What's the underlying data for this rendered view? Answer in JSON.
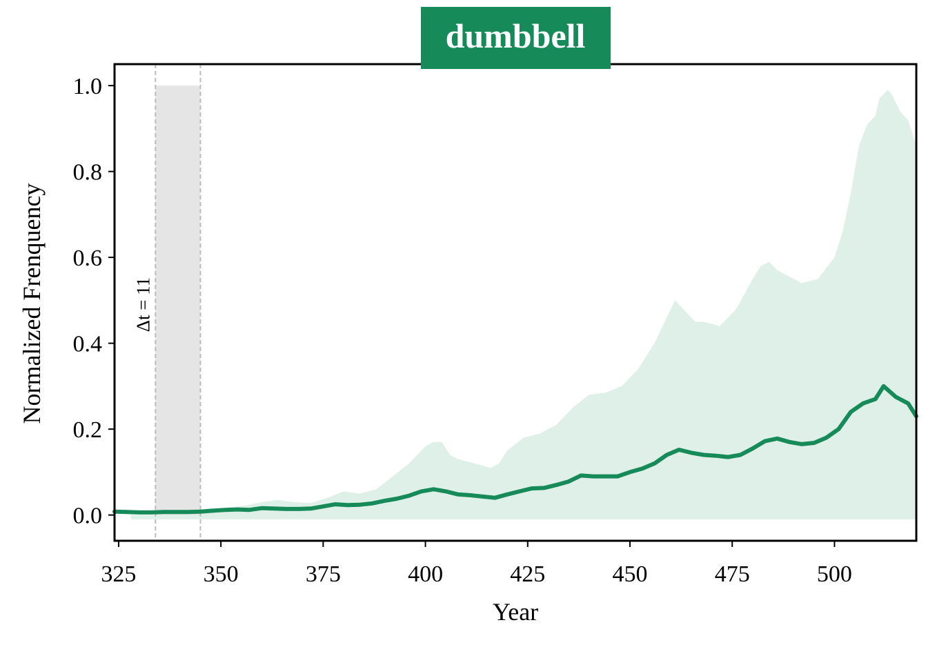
{
  "chart_data": {
    "type": "area",
    "title": "dumbbell",
    "xlabel": "Year",
    "ylabel": "Normalized Frenquency",
    "xlim": [
      324,
      520
    ],
    "ylim": [
      -0.06,
      1.05
    ],
    "xticks": [
      "325",
      "350",
      "375",
      "400",
      "425",
      "450",
      "475",
      "500"
    ],
    "yticks": [
      "0.0",
      "0.2",
      "0.4",
      "0.6",
      "0.8",
      "1.0"
    ],
    "grid": false,
    "colors": {
      "line": "#178a5a",
      "band": "#dff0e8",
      "window": "#e5e5e5",
      "title_bg": "#178a5a",
      "vline": "#bbbbbb"
    },
    "window": {
      "x_start": 334,
      "x_end": 345,
      "y_top": 1.0,
      "label": "Δt = 11"
    },
    "band_floor": -0.01,
    "series": [
      {
        "type": "line",
        "x": [
          324,
          327,
          330,
          333,
          336,
          339,
          342,
          345,
          348,
          351,
          354,
          357,
          360,
          363,
          366,
          369,
          372,
          375,
          378,
          381,
          384,
          387,
          390,
          393,
          396,
          399,
          402,
          405,
          408,
          411,
          414,
          417,
          420,
          423,
          426,
          429,
          432,
          435,
          438,
          441,
          444,
          447,
          450,
          453,
          456,
          459,
          462,
          465,
          468,
          471,
          474,
          477,
          480,
          483,
          486,
          489,
          492,
          495,
          498,
          501,
          504,
          507,
          510,
          512,
          515,
          518,
          520
        ],
        "y": [
          0.008,
          0.007,
          0.006,
          0.006,
          0.007,
          0.007,
          0.007,
          0.008,
          0.01,
          0.012,
          0.013,
          0.012,
          0.016,
          0.015,
          0.014,
          0.014,
          0.015,
          0.02,
          0.025,
          0.023,
          0.024,
          0.027,
          0.033,
          0.038,
          0.045,
          0.055,
          0.06,
          0.055,
          0.048,
          0.046,
          0.043,
          0.04,
          0.048,
          0.055,
          0.062,
          0.063,
          0.07,
          0.078,
          0.092,
          0.09,
          0.09,
          0.09,
          0.1,
          0.108,
          0.12,
          0.14,
          0.152,
          0.145,
          0.14,
          0.138,
          0.135,
          0.14,
          0.155,
          0.172,
          0.178,
          0.17,
          0.165,
          0.168,
          0.18,
          0.2,
          0.24,
          0.26,
          0.27,
          0.3,
          0.275,
          0.26,
          0.23
        ]
      },
      {
        "type": "band",
        "x": [
          328,
          332,
          336,
          340,
          344,
          348,
          352,
          356,
          360,
          364,
          368,
          372,
          376,
          380,
          384,
          388,
          392,
          396,
          400,
          402,
          404,
          406,
          408,
          410,
          412,
          414,
          416,
          418,
          420,
          424,
          428,
          432,
          436,
          440,
          444,
          448,
          452,
          456,
          458,
          460,
          461,
          462,
          464,
          466,
          468,
          472,
          476,
          480,
          482,
          484,
          486,
          488,
          492,
          496,
          500,
          502,
          504,
          506,
          508,
          510,
          511,
          512,
          513,
          514,
          515,
          516,
          517,
          518,
          520
        ],
        "y": [
          0.0,
          0.0,
          0.0,
          0.001,
          0.005,
          0.012,
          0.018,
          0.022,
          0.03,
          0.035,
          0.03,
          0.028,
          0.04,
          0.055,
          0.05,
          0.06,
          0.09,
          0.12,
          0.16,
          0.17,
          0.17,
          0.14,
          0.13,
          0.125,
          0.12,
          0.115,
          0.11,
          0.12,
          0.15,
          0.18,
          0.19,
          0.21,
          0.25,
          0.28,
          0.285,
          0.3,
          0.34,
          0.4,
          0.44,
          0.48,
          0.5,
          0.49,
          0.47,
          0.45,
          0.45,
          0.44,
          0.48,
          0.55,
          0.58,
          0.59,
          0.57,
          0.56,
          0.54,
          0.55,
          0.6,
          0.66,
          0.75,
          0.86,
          0.91,
          0.93,
          0.97,
          0.98,
          0.99,
          0.98,
          0.96,
          0.94,
          0.93,
          0.92,
          0.86
        ]
      }
    ]
  }
}
